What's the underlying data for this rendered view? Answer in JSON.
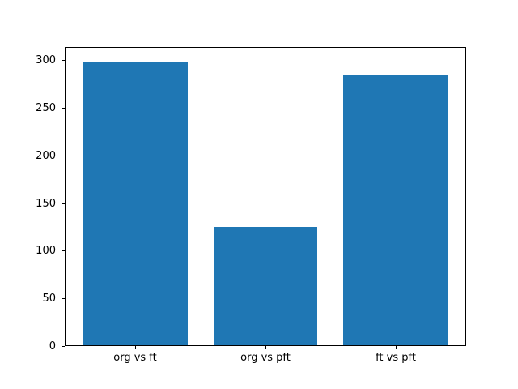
{
  "chart_data": {
    "type": "bar",
    "title": "",
    "xlabel": "",
    "ylabel": "",
    "categories": [
      "org vs ft",
      "org vs pft",
      "ft vs pft"
    ],
    "values": [
      299,
      125,
      285
    ],
    "bar_color": "#1f77b4",
    "yticks": [
      0,
      50,
      100,
      150,
      200,
      250,
      300
    ],
    "ylim": [
      0,
      314
    ],
    "xlim": [
      -0.54,
      2.54
    ],
    "bar_width": 0.8,
    "grid": false,
    "legend": false,
    "background_color": "#ffffff",
    "axis_color": "#000000"
  }
}
